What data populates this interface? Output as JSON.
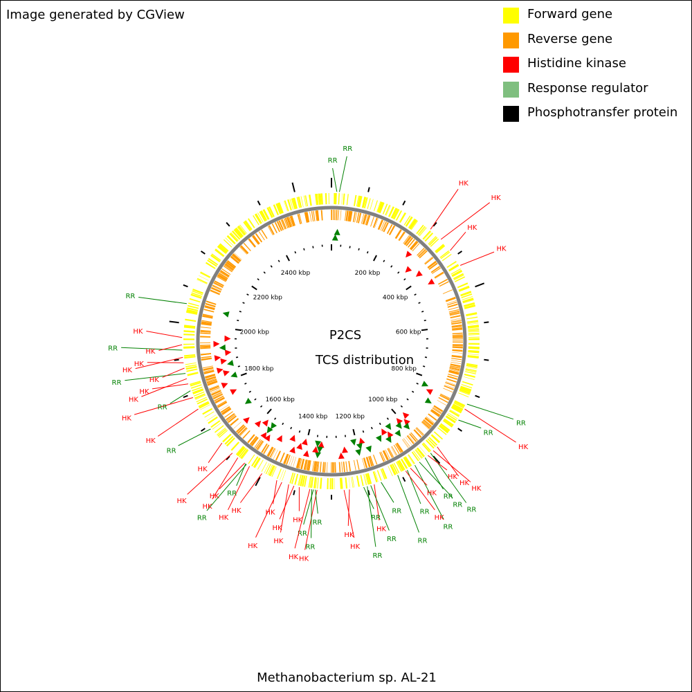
{
  "credit": "Image generated by CGView",
  "legend": [
    {
      "label": "Forward gene",
      "color": "#ffff00"
    },
    {
      "label": "Reverse gene",
      "color": "#ff9900"
    },
    {
      "label": "Histidine kinase",
      "color": "#ff0000"
    },
    {
      "label": "Response regulator",
      "color": "#7fbf7f"
    },
    {
      "label": "Phosphotransfer protein",
      "color": "#000000"
    }
  ],
  "map": {
    "title_line1": "P2CS",
    "title_line2": "TCS distribution",
    "genome_kbp": 2600,
    "ruler_ticks": [
      {
        "label": "200 kbp",
        "kbp": 200
      },
      {
        "label": "400 kbp",
        "kbp": 400
      },
      {
        "label": "600 kbp",
        "kbp": 600
      },
      {
        "label": "800 kbp",
        "kbp": 800
      },
      {
        "label": "1000 kbp",
        "kbp": 1000
      },
      {
        "label": "1200 kbp",
        "kbp": 1200
      },
      {
        "label": "1400 kbp",
        "kbp": 1400
      },
      {
        "label": "1600 kbp",
        "kbp": 1600
      },
      {
        "label": "1800 kbp",
        "kbp": 1800
      },
      {
        "label": "2000 kbp",
        "kbp": 2000
      },
      {
        "label": "2200 kbp",
        "kbp": 2200
      },
      {
        "label": "2400 kbp",
        "kbp": 2400
      }
    ],
    "colors": {
      "forward": "#ffff00",
      "reverse": "#ff9900",
      "hk": "#ff0000",
      "rr": "#008000",
      "backbone": "#808080"
    }
  },
  "features": [
    {
      "label": "RR",
      "kbp": 15
    },
    {
      "label": "RR",
      "kbp": 22
    },
    {
      "label": "HK",
      "kbp": 300
    },
    {
      "label": "HK",
      "kbp": 340
    },
    {
      "label": "HK",
      "kbp": 380
    },
    {
      "label": "HK",
      "kbp": 430
    },
    {
      "label": "RR",
      "kbp": 830
    },
    {
      "label": "HK",
      "kbp": 845
    },
    {
      "label": "RR",
      "kbp": 880
    },
    {
      "label": "HK",
      "kbp": 975
    },
    {
      "label": "HK",
      "kbp": 990
    },
    {
      "label": "RR",
      "kbp": 1000
    },
    {
      "label": "HK",
      "kbp": 1010
    },
    {
      "label": "RR",
      "kbp": 1020
    },
    {
      "label": "RR",
      "kbp": 1040
    },
    {
      "label": "RR",
      "kbp": 1055
    },
    {
      "label": "HK",
      "kbp": 1070
    },
    {
      "label": "RR",
      "kbp": 1080
    },
    {
      "label": "HK",
      "kbp": 1085
    },
    {
      "label": "RR",
      "kbp": 1110
    },
    {
      "label": "RR",
      "kbp": 1160
    },
    {
      "label": "HK",
      "kbp": 1180
    },
    {
      "label": "RR",
      "kbp": 1190
    },
    {
      "label": "RR",
      "kbp": 1200
    },
    {
      "label": "RR",
      "kbp": 1210
    },
    {
      "label": "HK",
      "kbp": 1250
    },
    {
      "label": "HK",
      "kbp": 1265
    },
    {
      "label": "HK",
      "kbp": 1340
    },
    {
      "label": "RR",
      "kbp": 1345
    },
    {
      "label": "RR",
      "kbp": 1350
    },
    {
      "label": "RR",
      "kbp": 1355
    },
    {
      "label": "HK",
      "kbp": 1360
    },
    {
      "label": "HK",
      "kbp": 1390
    },
    {
      "label": "HK",
      "kbp": 1405
    },
    {
      "label": "HK",
      "kbp": 1420
    },
    {
      "label": "HK",
      "kbp": 1440
    },
    {
      "label": "HK",
      "kbp": 1455
    },
    {
      "label": "HK",
      "kbp": 1500
    },
    {
      "label": "HK",
      "kbp": 1540
    },
    {
      "label": "RR",
      "kbp": 1550
    },
    {
      "label": "RR",
      "kbp": 1553
    },
    {
      "label": "HK",
      "kbp": 1556
    },
    {
      "label": "HK",
      "kbp": 1580
    },
    {
      "label": "HK",
      "kbp": 1600
    },
    {
      "label": "HK",
      "kbp": 1640
    },
    {
      "label": "RR",
      "kbp": 1690
    },
    {
      "label": "HK",
      "kbp": 1755
    },
    {
      "label": "HK",
      "kbp": 1790
    },
    {
      "label": "RR",
      "kbp": 1810
    },
    {
      "label": "HK",
      "kbp": 1830
    },
    {
      "label": "HK",
      "kbp": 1845
    },
    {
      "label": "RR",
      "kbp": 1860
    },
    {
      "label": "HK",
      "kbp": 1875
    },
    {
      "label": "HK",
      "kbp": 1890
    },
    {
      "label": "HK",
      "kbp": 1905
    },
    {
      "label": "RR",
      "kbp": 1925
    },
    {
      "label": "HK",
      "kbp": 1940
    },
    {
      "label": "HK",
      "kbp": 1960
    },
    {
      "label": "RR",
      "kbp": 2055
    }
  ],
  "organism": "Methanobacterium sp. AL-21"
}
